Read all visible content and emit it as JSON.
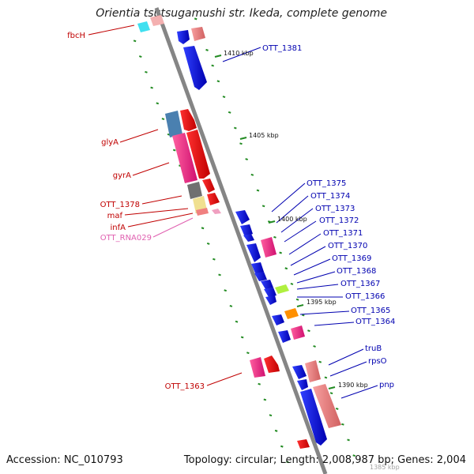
{
  "title": "Orientia tsutsugamushi str. Ikeda, complete genome",
  "footer": {
    "accession": "Accession: NC_010793",
    "topology": "Topology: circular; Length: 2,008,987 bp; Genes: 2,004"
  },
  "scale_labels": [
    "1410 kbp",
    "1405 kbp",
    "1400 kbp",
    "1395 kbp",
    "1390 kbp",
    "1385 kbp"
  ],
  "left_labels": [
    {
      "text": "fbcH",
      "color": "red"
    },
    {
      "text": "glyA",
      "color": "red"
    },
    {
      "text": "gyrA",
      "color": "red"
    },
    {
      "text": "OTT_1378",
      "color": "red"
    },
    {
      "text": "maf",
      "color": "red"
    },
    {
      "text": "infA",
      "color": "red"
    },
    {
      "text": "OTT_RNA029",
      "color": "pink"
    },
    {
      "text": "OTT_1363",
      "color": "red"
    }
  ],
  "right_labels": [
    {
      "text": "OTT_1381"
    },
    {
      "text": "OTT_1375"
    },
    {
      "text": "OTT_1374"
    },
    {
      "text": "OTT_1373"
    },
    {
      "text": "OTT_1372"
    },
    {
      "text": "OTT_1371"
    },
    {
      "text": "OTT_1370"
    },
    {
      "text": "OTT_1369"
    },
    {
      "text": "OTT_1368"
    },
    {
      "text": "OTT_1367"
    },
    {
      "text": "OTT_1366"
    },
    {
      "text": "OTT_1365"
    },
    {
      "text": "OTT_1364"
    },
    {
      "text": "truB"
    },
    {
      "text": "rpsO"
    },
    {
      "text": "pnp"
    }
  ],
  "colors": {
    "backbone": "#808080",
    "forward_gene": "#e00000",
    "reverse_gene": "#0000e0",
    "label_red": "#c00000",
    "label_blue": "#0000b0",
    "tick": "#228b22"
  }
}
